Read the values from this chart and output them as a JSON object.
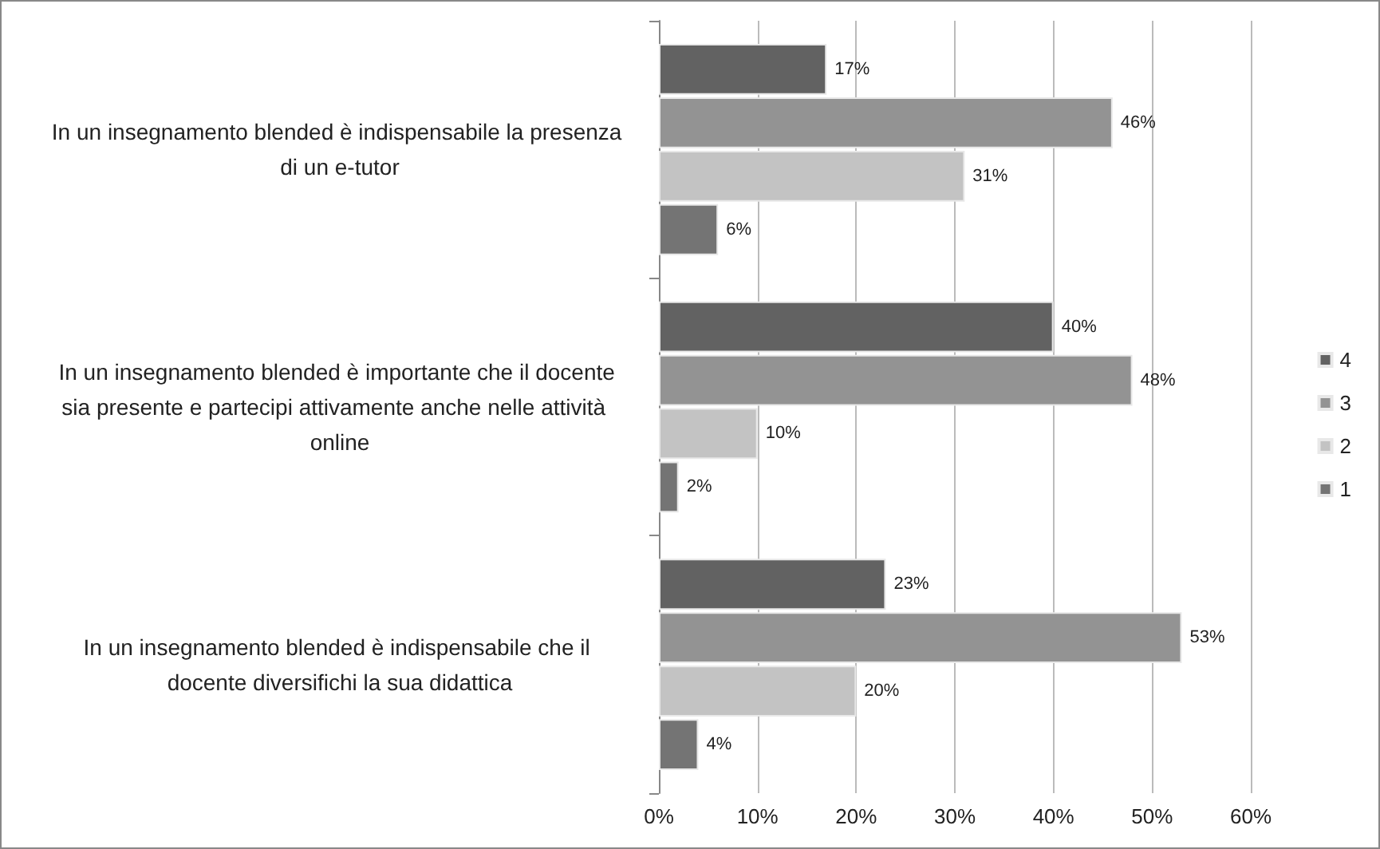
{
  "chart_data": {
    "type": "bar",
    "orientation": "horizontal",
    "categories": [
      "In un insegnamento blended è indispensabile la presenza di un e-tutor",
      "In un insegnamento blended è importante che il docente sia presente e partecipi attivamente anche nelle attività  online",
      "In un insegnamento blended è indispensabile che il docente diversifichi la sua didattica"
    ],
    "series": [
      {
        "name": "4",
        "color": "#626262",
        "values": [
          17,
          40,
          23
        ],
        "value_labels": [
          "17%",
          "40%",
          "23%"
        ]
      },
      {
        "name": "3",
        "color": "#939393",
        "values": [
          46,
          48,
          53
        ],
        "value_labels": [
          "46%",
          "48%",
          "53%"
        ]
      },
      {
        "name": "2",
        "color": "#c3c3c3",
        "values": [
          31,
          10,
          20
        ],
        "value_labels": [
          "31%",
          "10%",
          "20%"
        ]
      },
      {
        "name": "1",
        "color": "#747474",
        "values": [
          6,
          2,
          4
        ],
        "value_labels": [
          "6%",
          "2%",
          "4%"
        ]
      }
    ],
    "xlim": [
      0,
      60
    ],
    "xticks": [
      {
        "value": 0,
        "label": "0%"
      },
      {
        "value": 10,
        "label": "10%"
      },
      {
        "value": 20,
        "label": "20%"
      },
      {
        "value": 30,
        "label": "30%"
      },
      {
        "value": 40,
        "label": "40%"
      },
      {
        "value": 50,
        "label": "50%"
      },
      {
        "value": 60,
        "label": "60%"
      }
    ],
    "grid": "x",
    "legend": "right"
  }
}
